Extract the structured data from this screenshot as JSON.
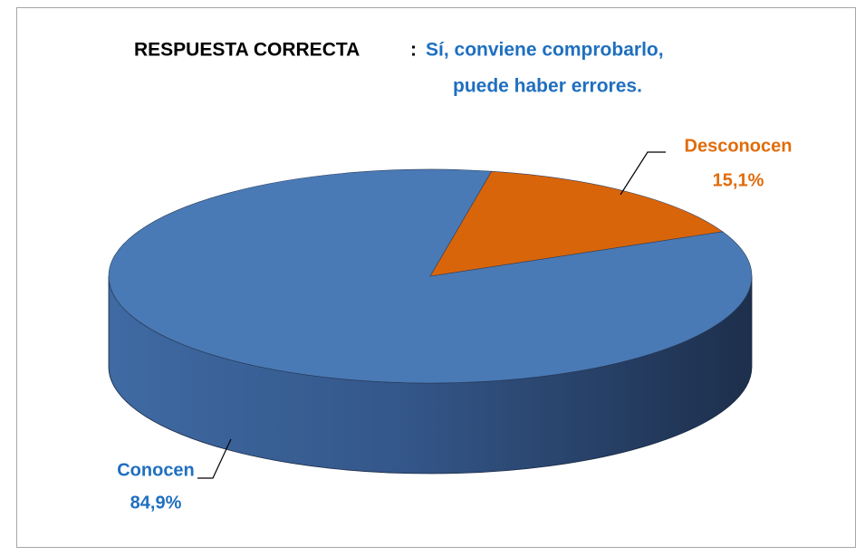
{
  "chart_data": {
    "type": "pie3d",
    "title": "RESPUESTA CORRECTA",
    "title_separator": ":",
    "title_answer": [
      "Sí, conviene comprobarlo,",
      "puede haber errores."
    ],
    "categories": [
      "Conocen",
      "Desconocen"
    ],
    "values": [
      84.9,
      15.1
    ],
    "value_labels": [
      "84,9%",
      "15,1%"
    ],
    "colors": [
      "#4a7ab5",
      "#d9650b"
    ],
    "label_colors": [
      "#1f6fbf",
      "#e06c0c"
    ]
  }
}
